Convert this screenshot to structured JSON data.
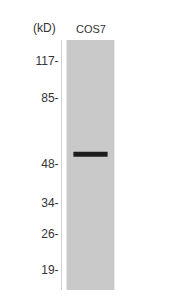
{
  "chart_data": {
    "type": "blot",
    "y_unit_label": "(kD)",
    "lane_labels": [
      "COS7"
    ],
    "bands": [
      {
        "lane": "COS7",
        "value": 52
      }
    ],
    "color": "#1c1c1c",
    "log": "y",
    "ylim": [
      16,
      140
    ],
    "yticks": [
      {
        "value": 117,
        "label": "117-"
      },
      {
        "value": 85,
        "label": "85-"
      },
      {
        "value": 48,
        "label": "48-"
      },
      {
        "value": 34,
        "label": "34-"
      },
      {
        "value": 26,
        "label": "26-"
      },
      {
        "value": 19,
        "label": "19-"
      }
    ]
  }
}
